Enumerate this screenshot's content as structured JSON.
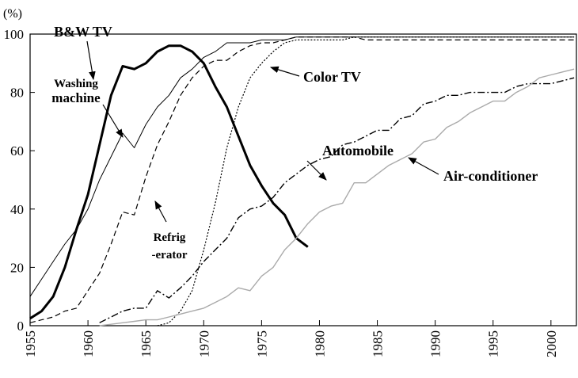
{
  "chart_data": {
    "type": "line",
    "y_label": "(%)",
    "x": [
      1955,
      1956,
      1957,
      1958,
      1959,
      1960,
      1961,
      1962,
      1963,
      1964,
      1965,
      1966,
      1967,
      1968,
      1969,
      1970,
      1971,
      1972,
      1973,
      1974,
      1975,
      1976,
      1977,
      1978,
      1979,
      1980,
      1981,
      1982,
      1983,
      1984,
      1985,
      1986,
      1987,
      1988,
      1989,
      1990,
      1991,
      1992,
      1993,
      1994,
      1995,
      1996,
      1997,
      1998,
      1999,
      2000,
      2001,
      2002
    ],
    "series": [
      {
        "name": "B&W TV",
        "color": "#000000",
        "line_style": "solid",
        "line_width": 3,
        "values": [
          2.5,
          5,
          10,
          20,
          33,
          45,
          62,
          79,
          89,
          88,
          90,
          94,
          96,
          96,
          94,
          90,
          82,
          75,
          65,
          55,
          48,
          42,
          38,
          30,
          27,
          null,
          null,
          null,
          null,
          null,
          null,
          null,
          null,
          null,
          null,
          null,
          null,
          null,
          null,
          null,
          null,
          null,
          null,
          null,
          null,
          null,
          null,
          null
        ]
      },
      {
        "name": "Washing machine",
        "color": "#000000",
        "line_style": "solid",
        "line_width": 1,
        "values": [
          10,
          16,
          22,
          28,
          33,
          40,
          50,
          58,
          66,
          61,
          69,
          75,
          79,
          85,
          88,
          92,
          94,
          97,
          97,
          97,
          98,
          98,
          98,
          99,
          99,
          99,
          99,
          99,
          99,
          99,
          99,
          99,
          99,
          99,
          99,
          99,
          99,
          99,
          99,
          99,
          99,
          99,
          99,
          99,
          99,
          99,
          99,
          99
        ]
      },
      {
        "name": "Refrig -erator",
        "color": "#000000",
        "line_style": "dashed",
        "line_width": 1.2,
        "values": [
          1,
          2,
          3,
          5,
          6,
          12,
          18,
          28,
          39,
          38,
          51,
          62,
          70,
          79,
          85,
          89,
          91,
          91,
          94,
          96,
          97,
          97,
          98,
          99,
          99,
          99,
          99,
          99,
          99,
          98,
          98,
          98,
          98,
          98,
          98,
          98,
          98,
          98,
          98,
          98,
          98,
          98,
          98,
          98,
          98,
          98,
          98,
          98
        ]
      },
      {
        "name": "Color TV",
        "color": "#000000",
        "line_style": "dotted",
        "line_width": 1.2,
        "values": [
          null,
          null,
          null,
          null,
          null,
          null,
          null,
          null,
          null,
          null,
          null,
          0,
          1,
          5,
          12,
          26,
          42,
          61,
          75,
          85,
          90,
          94,
          97,
          98,
          98,
          98,
          98,
          98,
          99,
          99,
          99,
          99,
          99,
          99,
          99,
          99,
          99,
          99,
          99,
          99,
          99,
          99,
          99,
          99,
          99,
          99,
          99,
          99
        ]
      },
      {
        "name": "Automobile",
        "color": "#000000",
        "line_style": "dashdot",
        "line_width": 1.4,
        "values": [
          null,
          null,
          null,
          null,
          null,
          null,
          1,
          3,
          5,
          6,
          6,
          12,
          9.5,
          13,
          17,
          22,
          26,
          30,
          37,
          40,
          41,
          44,
          49,
          52,
          55,
          57,
          58,
          62,
          63,
          65,
          67,
          67,
          71,
          72,
          76,
          77,
          79,
          79,
          80,
          80,
          80,
          80,
          82,
          83,
          83,
          83,
          84,
          85
        ]
      },
      {
        "name": "Air-conditioner",
        "color": "#aaaaaa",
        "line_style": "solid",
        "line_width": 1.4,
        "values": [
          null,
          null,
          null,
          null,
          null,
          null,
          0,
          0.5,
          1,
          1.5,
          2,
          2,
          3,
          4,
          5,
          6,
          8,
          10,
          13,
          12,
          17,
          20,
          26,
          30,
          35,
          39,
          41,
          42,
          49,
          49,
          52,
          55,
          57,
          59,
          63,
          64,
          68,
          70,
          73,
          75,
          77,
          77,
          80,
          82,
          85,
          86,
          87,
          88
        ]
      }
    ],
    "xlim": [
      1955,
      2002.2
    ],
    "xticks": [
      1955,
      1960,
      1965,
      1970,
      1975,
      1980,
      1985,
      1990,
      1995,
      2000
    ],
    "ylim": [
      0,
      100
    ],
    "yticks": [
      0,
      20,
      40,
      60,
      80,
      100
    ],
    "grid": false
  }
}
